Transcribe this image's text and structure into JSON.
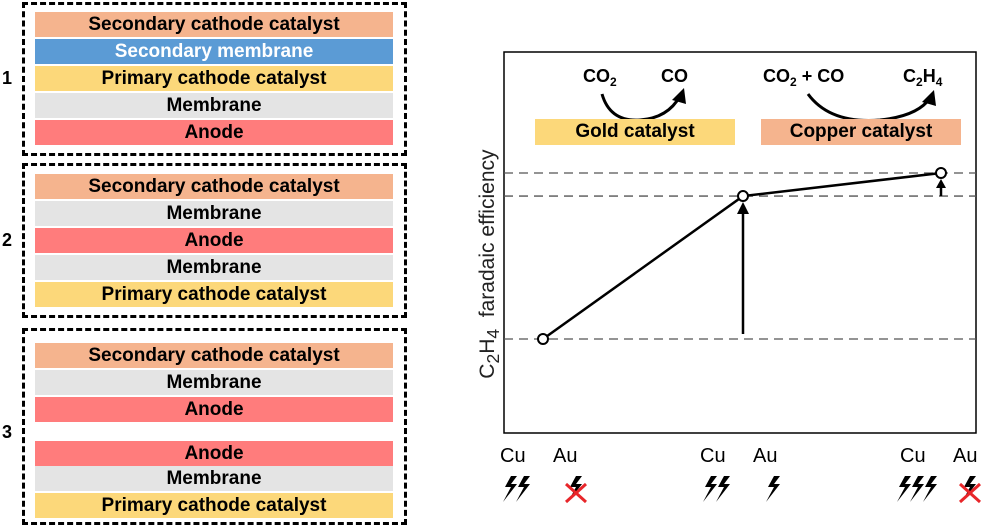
{
  "stacks": [
    {
      "number": "1",
      "layers": [
        {
          "label": "Secondary cathode catalyst",
          "color": "#f5b48e"
        },
        {
          "label": "Secondary membrane",
          "color": "#5b9bd5"
        },
        {
          "label": "Primary cathode catalyst",
          "color": "#fcd87a"
        },
        {
          "label": "Membrane",
          "color": "#e4e4e4"
        },
        {
          "label": "Anode",
          "color": "#ff7c7c"
        }
      ]
    },
    {
      "number": "2",
      "layers": [
        {
          "label": "Secondary cathode catalyst",
          "color": "#f5b48e"
        },
        {
          "label": "Membrane",
          "color": "#e4e4e4"
        },
        {
          "label": "Anode",
          "color": "#ff7c7c"
        },
        {
          "label": "Membrane",
          "color": "#e4e4e4"
        },
        {
          "label": "Primary cathode catalyst",
          "color": "#fcd87a"
        }
      ]
    },
    {
      "number": "3",
      "layers": [
        {
          "label": "Secondary cathode catalyst",
          "color": "#f5b48e"
        },
        {
          "label": "Membrane",
          "color": "#e4e4e4"
        },
        {
          "label": "Anode",
          "color": "#ff7c7c"
        },
        {
          "label": "Anode",
          "color": "#ff7c7c"
        },
        {
          "label": "Membrane",
          "color": "#e4e4e4"
        },
        {
          "label": "Primary cathode catalyst",
          "color": "#fcd87a"
        }
      ]
    }
  ],
  "chart": {
    "ylabel": "C2H4 faradaic efficiency",
    "gold_catalyst_label": "Gold catalyst",
    "copper_catalyst_label": "Copper catalyst",
    "reaction1_reactant": "CO2",
    "reaction1_product": "CO",
    "reaction2_reactant": "CO2 + CO",
    "reaction2_product": "C2H4",
    "x_labels": [
      "Cu",
      "Au",
      "Cu",
      "Au",
      "Cu",
      "Au"
    ],
    "levels": [
      {
        "config": "1",
        "cu_bolts": 2,
        "au_bolts": 1,
        "au_disabled": true
      },
      {
        "config": "2",
        "cu_bolts": 2,
        "au_bolts": 1,
        "au_disabled": false
      },
      {
        "config": "3",
        "cu_bolts": 3,
        "au_bolts": 1,
        "au_disabled": true
      }
    ],
    "colors": {
      "gold_box": "#fcd87a",
      "copper_box": "#f5b48e",
      "cross": "#e8262a"
    }
  },
  "chart_data": {
    "type": "line",
    "title": "",
    "xlabel": "",
    "ylabel": "C2H4 faradaic efficiency",
    "categories": [
      "1",
      "2",
      "3"
    ],
    "values": [
      0.2,
      0.82,
      0.92
    ],
    "ylim": [
      0,
      1
    ],
    "reference_lines": [
      0.2,
      0.82,
      0.92
    ],
    "annotations": [
      "increase arrow 1→2",
      "increase arrow 2→3"
    ]
  }
}
